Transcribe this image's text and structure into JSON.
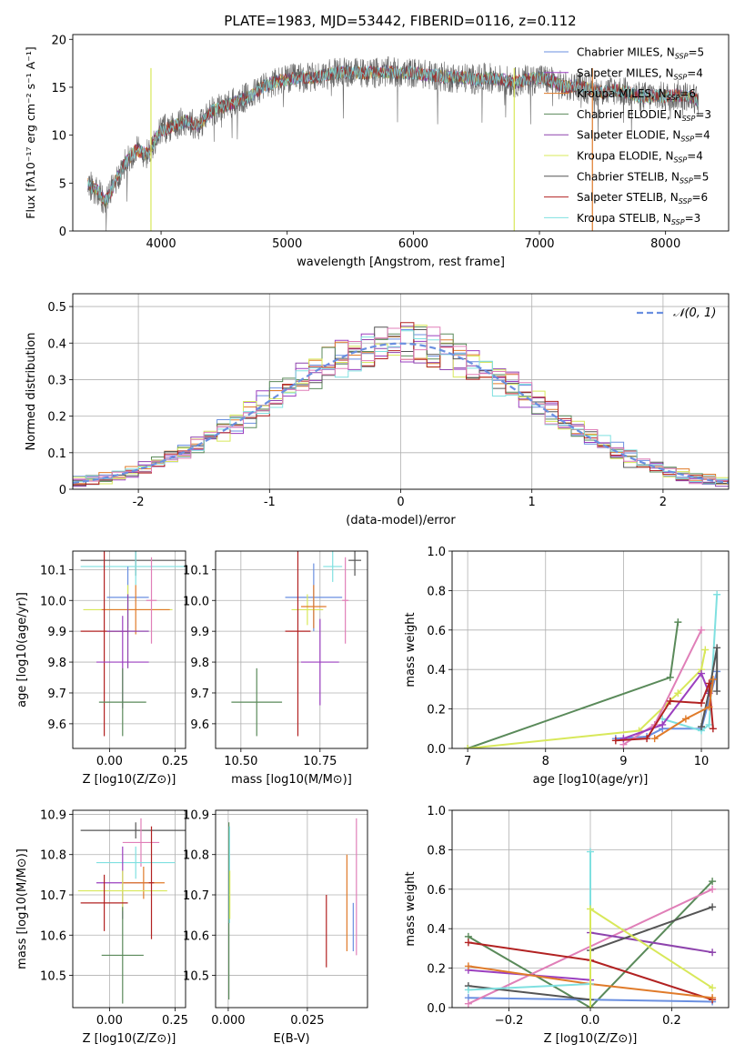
{
  "figure": {
    "title": "PLATE=1983, MJD=53442, FIBERID=0116, z=0.112"
  },
  "colors": {
    "Chabrier MILES": "#6a8fe0",
    "Salpeter MILES": "#9b3fbf",
    "Kroupa MILES": "#e07b2a",
    "Chabrier ELODIE": "#5a8a5a",
    "Salpeter ELODIE": "#8e44ad",
    "Kroupa ELODIE": "#d8e85a",
    "Chabrier STELIB": "#555555",
    "Salpeter STELIB": "#b22222",
    "Kroupa STELIB": "#7fe0e0",
    "pink": "#e07fb8",
    "dashed_normal": "#6a8fe0"
  },
  "chart_data": [
    {
      "id": "spectrum",
      "type": "line",
      "xlabel": "wavelength [Angstrom, rest frame]",
      "ylabel": "Flux [f_λ 10^-17 erg cm^-2 s^-1 A^-1]",
      "xlim": [
        3300,
        8500
      ],
      "ylim": [
        0,
        20.5
      ],
      "xticks": [
        4000,
        5000,
        6000,
        7000,
        8000
      ],
      "yticks": [
        0,
        5,
        10,
        15,
        20
      ],
      "legend_position": "right",
      "legend": [
        {
          "name": "Chabrier MILES, N_SSP=5",
          "label": "Chabrier MILES, N",
          "sub": "SSP",
          "tail": "=5",
          "color": "#6a8fe0"
        },
        {
          "name": "Salpeter MILES, N_SSP=4",
          "label": "Salpeter MILES, N",
          "sub": "SSP",
          "tail": "=4",
          "color": "#9b3fbf"
        },
        {
          "name": "Kroupa MILES, N_SSP=6",
          "label": "Kroupa MILES, N",
          "sub": "SSP",
          "tail": "=6",
          "color": "#e07b2a"
        },
        {
          "name": "Chabrier ELODIE, N_SSP=3",
          "label": "Chabrier ELODIE, N",
          "sub": "SSP",
          "tail": "=3",
          "color": "#5a8a5a"
        },
        {
          "name": "Salpeter ELODIE, N_SSP=4",
          "label": "Salpeter ELODIE, N",
          "sub": "SSP",
          "tail": "=4",
          "color": "#8e44ad"
        },
        {
          "name": "Kroupa ELODIE, N_SSP=4",
          "label": "Kroupa ELODIE, N",
          "sub": "SSP",
          "tail": "=4",
          "color": "#d8e85a"
        },
        {
          "name": "Chabrier STELIB, N_SSP=5",
          "label": "Chabrier STELIB, N",
          "sub": "SSP",
          "tail": "=5",
          "color": "#555555"
        },
        {
          "name": "Salpeter STELIB, N_SSP=6",
          "label": "Salpeter STELIB, N",
          "sub": "SSP",
          "tail": "=6",
          "color": "#b22222"
        },
        {
          "name": "Kroupa STELIB, N_SSP=3",
          "label": "Kroupa STELIB, N",
          "sub": "SSP",
          "tail": "=3",
          "color": "#7fe0e0"
        }
      ],
      "continuum": [
        [
          3420,
          4.8
        ],
        [
          3500,
          4.2
        ],
        [
          3560,
          3.0
        ],
        [
          3650,
          5.5
        ],
        [
          3700,
          6.8
        ],
        [
          3800,
          8.5
        ],
        [
          3900,
          8.0
        ],
        [
          3950,
          9.5
        ],
        [
          4000,
          10.5
        ],
        [
          4100,
          11.0
        ],
        [
          4200,
          11.5
        ],
        [
          4300,
          11.0
        ],
        [
          4400,
          12.5
        ],
        [
          4500,
          13.0
        ],
        [
          4600,
          13.5
        ],
        [
          4700,
          14.0
        ],
        [
          4800,
          15.0
        ],
        [
          4900,
          15.5
        ],
        [
          5000,
          15.8
        ],
        [
          5100,
          16.0
        ],
        [
          5200,
          16.0
        ],
        [
          5300,
          16.3
        ],
        [
          5400,
          16.5
        ],
        [
          5500,
          16.6
        ],
        [
          5600,
          16.5
        ],
        [
          5700,
          16.5
        ],
        [
          5800,
          16.6
        ],
        [
          5900,
          16.5
        ],
        [
          6000,
          16.5
        ],
        [
          6100,
          16.3
        ],
        [
          6200,
          16.2
        ],
        [
          6300,
          16.0
        ],
        [
          6400,
          16.0
        ],
        [
          6500,
          15.8
        ],
        [
          6600,
          16.0
        ],
        [
          6700,
          15.8
        ],
        [
          6800,
          15.5
        ],
        [
          6900,
          15.8
        ],
        [
          7000,
          16.0
        ],
        [
          7100,
          15.6
        ],
        [
          7200,
          15.0
        ],
        [
          7300,
          15.2
        ],
        [
          7400,
          14.8
        ],
        [
          7500,
          14.5
        ],
        [
          7600,
          14.7
        ],
        [
          7700,
          14.5
        ],
        [
          7800,
          14.0
        ],
        [
          7900,
          14.1
        ],
        [
          8000,
          14.0
        ],
        [
          8100,
          14.2
        ],
        [
          8200,
          14.0
        ],
        [
          8260,
          13.6
        ]
      ],
      "vertical_lines": [
        {
          "x": 3920,
          "color": "#d8e85a"
        },
        {
          "x": 6800,
          "color": "#d8e85a"
        },
        {
          "x": 7420,
          "color": "#e07b2a"
        }
      ]
    },
    {
      "id": "residuals",
      "type": "area",
      "xlabel": "(data-model)/error",
      "ylabel": "Normed distribution",
      "xlim": [
        -2.5,
        2.5
      ],
      "ylim": [
        0,
        0.535
      ],
      "xticks": [
        -2,
        -1,
        0,
        1,
        2
      ],
      "yticks": [
        0.0,
        0.1,
        0.2,
        0.3,
        0.4,
        0.5
      ],
      "grid": true,
      "legend_position": "top-right",
      "legend": [
        {
          "name": "𝒩(0, 1)",
          "style": "dashed",
          "color": "#6a8fe0"
        }
      ],
      "bin_edges_start": -2.5,
      "bin_width": 0.1,
      "normal_curve": {
        "mean": 0,
        "sigma": 1
      }
    },
    {
      "id": "age_vs_Z",
      "type": "scatter",
      "xlabel": "Z [log10(Z/Z⊙)]",
      "ylabel": "age [log10(age/yr)]",
      "xlim": [
        -0.14,
        0.29
      ],
      "ylim": [
        9.52,
        10.16
      ],
      "xticks": [
        "0.00",
        "0.25"
      ],
      "yticks": [
        "9.6",
        "9.7",
        "9.8",
        "9.9",
        "10.0",
        "10.1"
      ],
      "grid": true,
      "points": [
        {
          "x": 0.1,
          "xerr": 0.21,
          "y": 10.13,
          "yerr": 0.05,
          "color": "#555555"
        },
        {
          "x": 0.1,
          "xerr": 0.21,
          "y": 10.11,
          "yerr": 0.06,
          "color": "#7fe0e0"
        },
        {
          "x": 0.07,
          "xerr": 0.08,
          "y": 10.01,
          "yerr": 0.1,
          "color": "#6a8fe0"
        },
        {
          "x": 0.07,
          "xerr": 0.17,
          "y": 9.97,
          "yerr": 0.08,
          "color": "#d8e85a"
        },
        {
          "x": 0.1,
          "xerr": 0.13,
          "y": 9.97,
          "yerr": 0.08,
          "color": "#e07b2a"
        },
        {
          "x": -0.02,
          "xerr": 0.09,
          "y": 9.9,
          "yerr": 0.34,
          "color": "#b22222"
        },
        {
          "x": 0.07,
          "xerr": 0.08,
          "y": 9.9,
          "yerr": 0.12,
          "color": "#8e44ad"
        },
        {
          "x": 0.05,
          "xerr": 0.1,
          "y": 9.8,
          "yerr": 0.15,
          "color": "#9b3fbf"
        },
        {
          "x": 0.05,
          "xerr": 0.09,
          "y": 9.67,
          "yerr": 0.11,
          "color": "#5a8a5a"
        },
        {
          "x": 0.16,
          "xerr": 0.02,
          "y": 10.0,
          "yerr": 0.14,
          "color": "#e07fb8"
        }
      ]
    },
    {
      "id": "age_vs_mass",
      "type": "scatter",
      "xlabel": "mass [log10(M/M⊙)]",
      "ylabel": "",
      "xlim": [
        10.42,
        10.9
      ],
      "ylim": [
        9.52,
        10.16
      ],
      "xticks": [
        "10.50",
        "10.75"
      ],
      "yticks": [
        "9.6",
        "9.7",
        "9.8",
        "9.9",
        "10.0",
        "10.1"
      ],
      "grid": true,
      "points": [
        {
          "x": 10.86,
          "xerr": 0.02,
          "y": 10.13,
          "yerr": 0.05,
          "color": "#555555"
        },
        {
          "x": 10.79,
          "xerr": 0.03,
          "y": 10.11,
          "yerr": 0.05,
          "color": "#7fe0e0"
        },
        {
          "x": 10.73,
          "xerr": 0.09,
          "y": 10.01,
          "yerr": 0.11,
          "color": "#6a8fe0"
        },
        {
          "x": 10.71,
          "xerr": 0.05,
          "y": 9.97,
          "yerr": 0.05,
          "color": "#d8e85a"
        },
        {
          "x": 10.73,
          "xerr": 0.04,
          "y": 9.98,
          "yerr": 0.07,
          "color": "#e07b2a"
        },
        {
          "x": 10.68,
          "xerr": 0.04,
          "y": 9.9,
          "yerr": 0.34,
          "color": "#b22222"
        },
        {
          "x": 10.75,
          "xerr": 0.06,
          "y": 9.8,
          "yerr": 0.14,
          "color": "#9b3fbf"
        },
        {
          "x": 10.55,
          "xerr": 0.08,
          "y": 9.67,
          "yerr": 0.11,
          "color": "#5a8a5a"
        },
        {
          "x": 10.83,
          "xerr": 0.01,
          "y": 10.0,
          "yerr": 0.14,
          "color": "#e07fb8"
        }
      ]
    },
    {
      "id": "weight_vs_age",
      "type": "line",
      "xlabel": "age [log10(age/yr)]",
      "ylabel": "mass weight",
      "xlim": [
        6.8,
        10.35
      ],
      "ylim": [
        0,
        1.0
      ],
      "xticks": [
        "7",
        "8",
        "9",
        "10"
      ],
      "yticks": [
        "0.0",
        "0.2",
        "0.4",
        "0.6",
        "0.8",
        "1.0"
      ],
      "grid": true,
      "series": [
        {
          "color": "#5a8a5a",
          "points": [
            [
              7.0,
              0.0
            ],
            [
              9.6,
              0.36
            ],
            [
              9.7,
              0.64
            ]
          ]
        },
        {
          "color": "#d8e85a",
          "points": [
            [
              7.0,
              0.0
            ],
            [
              9.2,
              0.09
            ],
            [
              9.7,
              0.28
            ],
            [
              10.0,
              0.4
            ],
            [
              10.05,
              0.5
            ]
          ]
        },
        {
          "color": "#6a8fe0",
          "points": [
            [
              8.9,
              0.05
            ],
            [
              9.3,
              0.06
            ],
            [
              9.5,
              0.1
            ],
            [
              10.0,
              0.1
            ],
            [
              10.2,
              0.39
            ]
          ]
        },
        {
          "color": "#e07fb8",
          "points": [
            [
              9.0,
              0.02
            ],
            [
              9.4,
              0.12
            ],
            [
              10.0,
              0.6
            ]
          ]
        },
        {
          "color": "#7fe0e0",
          "points": [
            [
              9.5,
              0.15
            ],
            [
              10.0,
              0.09
            ],
            [
              10.1,
              0.12
            ],
            [
              10.2,
              0.78
            ]
          ]
        },
        {
          "color": "#9b3fbf",
          "points": [
            [
              9.0,
              0.05
            ],
            [
              9.5,
              0.12
            ],
            [
              10.0,
              0.38
            ],
            [
              10.1,
              0.28
            ]
          ]
        },
        {
          "color": "#555555",
          "points": [
            [
              10.0,
              0.11
            ],
            [
              10.1,
              0.29
            ],
            [
              10.2,
              0.51
            ],
            [
              10.2,
              0.29
            ]
          ]
        },
        {
          "color": "#b22222",
          "points": [
            [
              8.9,
              0.04
            ],
            [
              9.3,
              0.05
            ],
            [
              9.6,
              0.24
            ],
            [
              10.0,
              0.23
            ],
            [
              10.1,
              0.33
            ],
            [
              10.15,
              0.1
            ]
          ]
        },
        {
          "color": "#e07b2a",
          "points": [
            [
              9.4,
              0.05
            ],
            [
              9.8,
              0.15
            ],
            [
              10.1,
              0.21
            ],
            [
              10.15,
              0.35
            ]
          ]
        }
      ]
    },
    {
      "id": "mass_vs_Z",
      "type": "scatter",
      "xlabel": "Z [log10(Z/Z⊙)]",
      "ylabel": "mass [log10(M/M⊙)]",
      "xlim": [
        -0.14,
        0.29
      ],
      "ylim": [
        10.42,
        10.91
      ],
      "xticks": [
        "0.00",
        "0.25"
      ],
      "yticks": [
        "10.5",
        "10.6",
        "10.7",
        "10.8",
        "10.9"
      ],
      "grid": true,
      "points": [
        {
          "x": 0.1,
          "xerr": 0.21,
          "y": 10.86,
          "yerr": 0.02,
          "color": "#555555"
        },
        {
          "x": 0.12,
          "xerr": 0.07,
          "y": 10.83,
          "yerr": 0.06,
          "color": "#e07fb8"
        },
        {
          "x": 0.1,
          "xerr": 0.15,
          "y": 10.78,
          "yerr": 0.04,
          "color": "#7fe0e0"
        },
        {
          "x": 0.05,
          "xerr": 0.1,
          "y": 10.73,
          "yerr": 0.09,
          "color": "#9b3fbf"
        },
        {
          "x": 0.13,
          "xerr": 0.08,
          "y": 10.73,
          "yerr": 0.04,
          "color": "#e07b2a"
        },
        {
          "x": 0.05,
          "xerr": 0.17,
          "y": 10.71,
          "yerr": 0.05,
          "color": "#d8e85a"
        },
        {
          "x": -0.02,
          "xerr": 0.09,
          "y": 10.68,
          "yerr": 0.07,
          "color": "#b22222"
        },
        {
          "x": 0.05,
          "xerr": 0.08,
          "y": 10.55,
          "yerr": 0.12,
          "color": "#5a8a5a"
        },
        {
          "x": 0.16,
          "xerr": 0.01,
          "y": 10.73,
          "yerr": 0.14,
          "color": "#b22222"
        }
      ]
    },
    {
      "id": "mass_vs_ebv",
      "type": "scatter",
      "xlabel": "E(B-V)",
      "ylabel": "",
      "xlim": [
        -0.004,
        0.044
      ],
      "ylim": [
        10.42,
        10.91
      ],
      "xticks": [
        "0.000",
        "0.025"
      ],
      "yticks": [
        "10.5",
        "10.6",
        "10.7",
        "10.8",
        "10.9"
      ],
      "grid": true,
      "points": [
        {
          "x": 0.0002,
          "y": 10.66,
          "yerr": 0.22,
          "color": "#5a8a5a"
        },
        {
          "x": 0.0004,
          "y": 10.75,
          "yerr": 0.12,
          "color": "#7fe0e0"
        },
        {
          "x": 0.0005,
          "y": 10.7,
          "yerr": 0.06,
          "color": "#d8e85a"
        },
        {
          "x": 0.031,
          "y": 10.61,
          "yerr": 0.09,
          "color": "#b22222"
        },
        {
          "x": 0.0375,
          "y": 10.68,
          "yerr": 0.12,
          "color": "#e07b2a"
        },
        {
          "x": 0.0405,
          "y": 10.72,
          "yerr": 0.17,
          "color": "#e07fb8"
        },
        {
          "x": 0.0395,
          "y": 10.62,
          "yerr": 0.06,
          "color": "#6a8fe0"
        }
      ]
    },
    {
      "id": "weight_vs_Z",
      "type": "line",
      "xlabel": "Z [log10(Z/Z⊙)]",
      "ylabel": "mass weight",
      "xlim": [
        -0.34,
        0.34
      ],
      "ylim": [
        0,
        1.0
      ],
      "xticks": [
        "−0.2",
        "0.0",
        "0.2"
      ],
      "yticks": [
        "0.0",
        "0.2",
        "0.4",
        "0.6",
        "0.8",
        "1.0"
      ],
      "grid": true,
      "series": [
        {
          "color": "#5a8a5a",
          "points": [
            [
              -0.3,
              0.36
            ],
            [
              0.0,
              0.0
            ],
            [
              0.3,
              0.64
            ]
          ]
        },
        {
          "color": "#6a8fe0",
          "points": [
            [
              -0.3,
              0.05
            ],
            [
              0.0,
              0.04
            ],
            [
              0.3,
              0.03
            ]
          ]
        },
        {
          "color": "#e07fb8",
          "points": [
            [
              -0.3,
              0.02
            ],
            [
              0.3,
              0.6
            ]
          ]
        },
        {
          "color": "#9b3fbf",
          "points": [
            [
              -0.3,
              0.19
            ],
            [
              0.0,
              0.14
            ]
          ]
        },
        {
          "color": "#8e44ad",
          "points": [
            [
              0.0,
              0.38
            ],
            [
              0.3,
              0.28
            ]
          ]
        },
        {
          "color": "#555555",
          "points": [
            [
              -0.3,
              0.11
            ],
            [
              0.0,
              0.04
            ]
          ]
        },
        {
          "color": "#555555",
          "points": [
            [
              0.0,
              0.29
            ],
            [
              0.3,
              0.51
            ]
          ]
        },
        {
          "color": "#b22222",
          "points": [
            [
              -0.3,
              0.33
            ],
            [
              0.0,
              0.24
            ],
            [
              0.3,
              0.04
            ]
          ]
        },
        {
          "color": "#e07b2a",
          "points": [
            [
              -0.3,
              0.21
            ],
            [
              0.0,
              0.12
            ],
            [
              0.3,
              0.05
            ]
          ]
        },
        {
          "color": "#7fe0e0",
          "points": [
            [
              -0.3,
              0.09
            ],
            [
              0.0,
              0.12
            ],
            [
              0.0,
              0.79
            ]
          ]
        },
        {
          "color": "#d8e85a",
          "points": [
            [
              0.0,
              0.0
            ],
            [
              0.0,
              0.5
            ],
            [
              0.3,
              0.1
            ]
          ]
        }
      ]
    }
  ]
}
